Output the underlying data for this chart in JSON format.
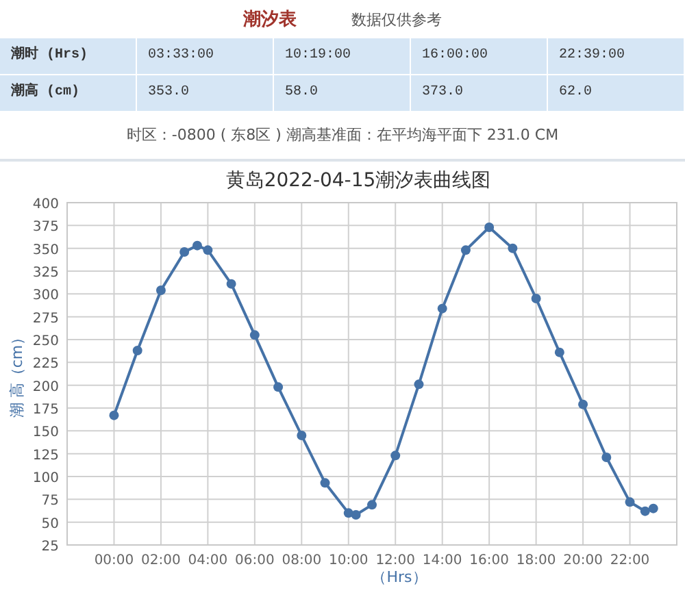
{
  "chart_data": {
    "type": "line",
    "title": "黄岛2022-04-15潮汐表曲线图",
    "xlabel": "（Hrs）",
    "ylabel": "潮 高（cm）",
    "annotations": [
      "潮汐表",
      "数据仅供参考",
      "潮时 (Hrs)",
      "03:33:00",
      "10:19:00",
      "16:00:00",
      "22:39:00",
      "潮高 (cm)",
      "353.0",
      "58.0",
      "373.0",
      "62.0",
      "时区：-0800 ( 东8区 ) 潮高基准面：在平均海平面下 231.0 CM"
    ],
    "x": [
      0,
      1,
      2,
      3,
      3.55,
      4,
      5,
      6,
      7,
      8,
      9,
      10,
      10.317,
      11,
      12,
      13,
      14,
      15,
      16,
      17,
      18,
      19,
      20,
      21,
      22,
      22.65,
      23
    ],
    "series": [
      {
        "color": "#4572a7",
        "values": [
          167,
          238,
          304,
          346,
          353,
          348,
          311,
          255,
          198,
          145,
          93,
          60,
          58,
          69,
          123,
          201,
          284,
          348,
          373,
          350,
          295,
          236,
          179,
          121,
          72,
          62,
          65
        ]
      }
    ],
    "xlim": [
      -2,
      24
    ],
    "xticks": [
      {
        "value": 0,
        "label": "00:00"
      },
      {
        "value": 2,
        "label": "02:00"
      },
      {
        "value": 4,
        "label": "04:00"
      },
      {
        "value": 6,
        "label": "06:00"
      },
      {
        "value": 8,
        "label": "08:00"
      },
      {
        "value": 10,
        "label": "10:00"
      },
      {
        "value": 12,
        "label": "12:00"
      },
      {
        "value": 14,
        "label": "14:00"
      },
      {
        "value": 16,
        "label": "16:00"
      },
      {
        "value": 18,
        "label": "18:00"
      },
      {
        "value": 20,
        "label": "20:00"
      },
      {
        "value": 22,
        "label": "22:00"
      }
    ],
    "ylim": [
      25,
      400
    ],
    "yticks": [
      25,
      50,
      75,
      100,
      125,
      150,
      175,
      200,
      225,
      250,
      275,
      300,
      325,
      350,
      375,
      400
    ],
    "grid": true,
    "marker": "circle",
    "line_style": "solid"
  }
}
